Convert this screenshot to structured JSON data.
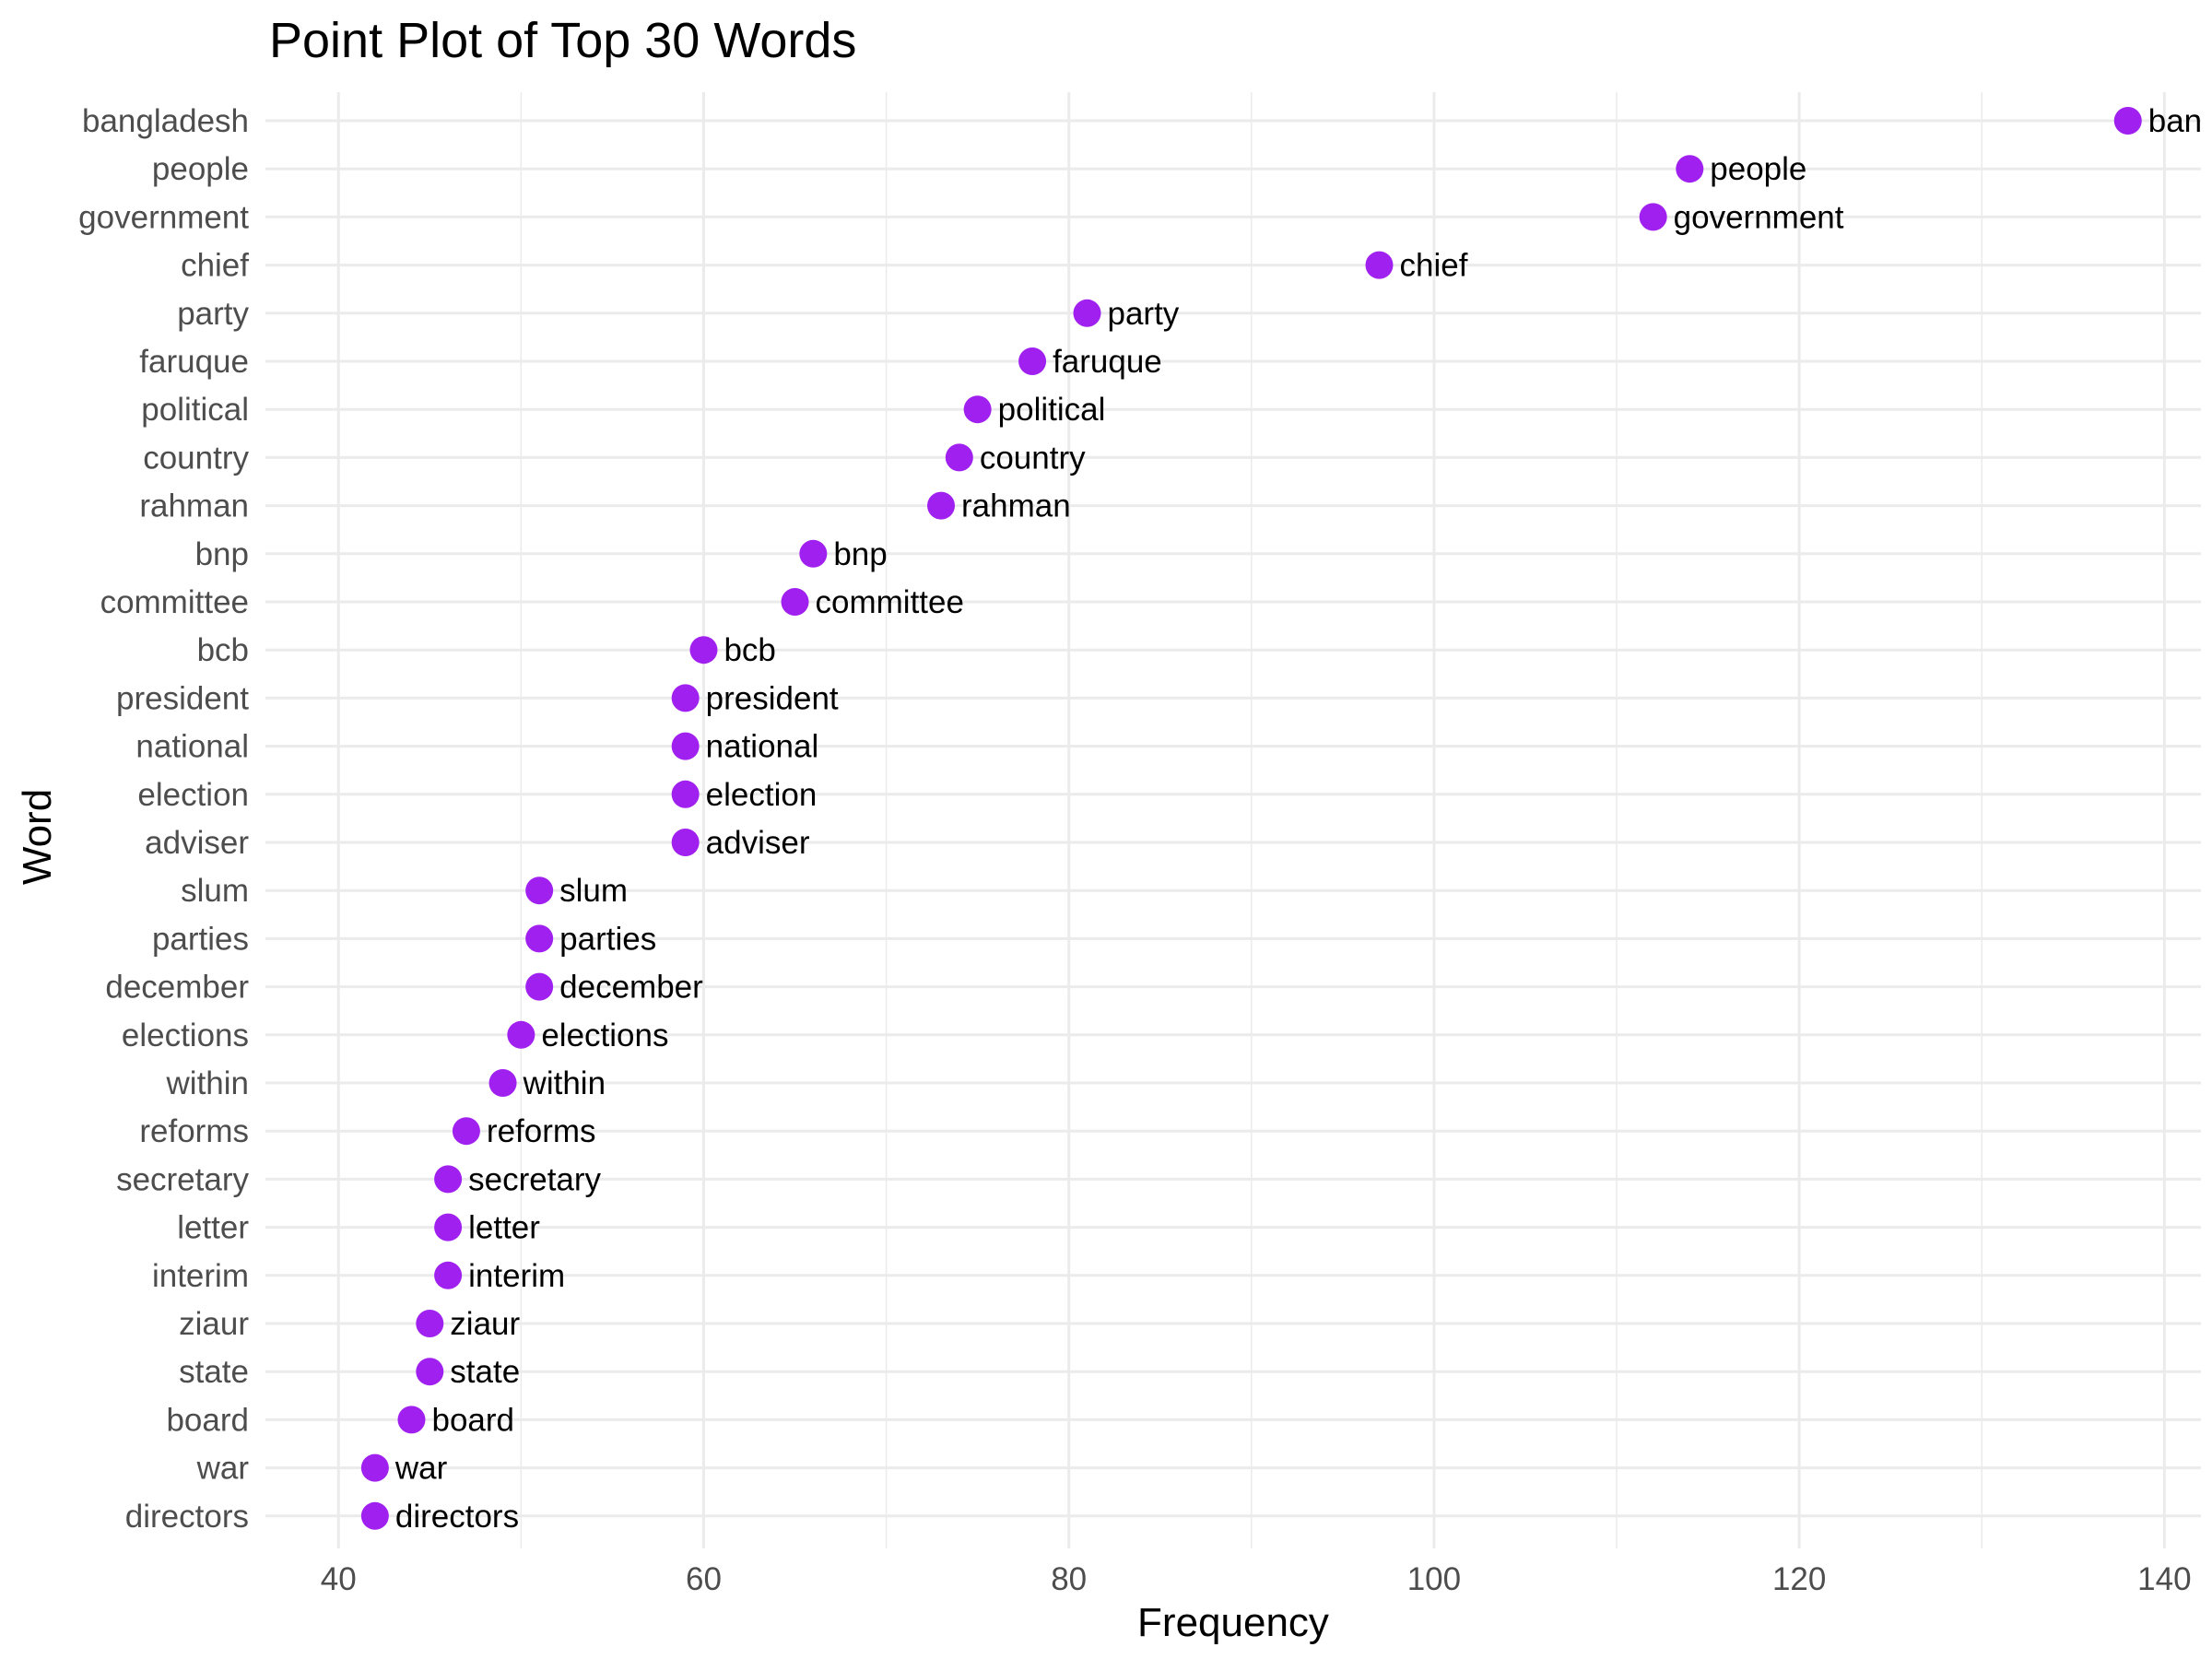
{
  "chart_data": {
    "type": "scatter",
    "title": "Point Plot of Top 30 Words",
    "xlabel": "Frequency",
    "ylabel": "Word",
    "xlim": [
      36,
      142
    ],
    "x_ticks": [
      40,
      60,
      80,
      100,
      120,
      140
    ],
    "grid": true,
    "point_color": "#A020F0",
    "points": [
      {
        "word": "bangladesh",
        "value": 138,
        "label": "ban"
      },
      {
        "word": "people",
        "value": 114,
        "label": "people"
      },
      {
        "word": "government",
        "value": 112,
        "label": "government"
      },
      {
        "word": "chief",
        "value": 97,
        "label": "chief"
      },
      {
        "word": "party",
        "value": 81,
        "label": "party"
      },
      {
        "word": "faruque",
        "value": 78,
        "label": "faruque"
      },
      {
        "word": "political",
        "value": 75,
        "label": "political"
      },
      {
        "word": "country",
        "value": 74,
        "label": "country"
      },
      {
        "word": "rahman",
        "value": 73,
        "label": "rahman"
      },
      {
        "word": "bnp",
        "value": 66,
        "label": "bnp"
      },
      {
        "word": "committee",
        "value": 65,
        "label": "committee"
      },
      {
        "word": "bcb",
        "value": 60,
        "label": "bcb"
      },
      {
        "word": "president",
        "value": 59,
        "label": "president"
      },
      {
        "word": "national",
        "value": 59,
        "label": "national"
      },
      {
        "word": "election",
        "value": 59,
        "label": "election"
      },
      {
        "word": "adviser",
        "value": 59,
        "label": "adviser"
      },
      {
        "word": "slum",
        "value": 51,
        "label": "slum"
      },
      {
        "word": "parties",
        "value": 51,
        "label": "parties"
      },
      {
        "word": "december",
        "value": 51,
        "label": "december"
      },
      {
        "word": "elections",
        "value": 50,
        "label": "elections"
      },
      {
        "word": "within",
        "value": 49,
        "label": "within"
      },
      {
        "word": "reforms",
        "value": 47,
        "label": "reforms"
      },
      {
        "word": "secretary",
        "value": 46,
        "label": "secretary"
      },
      {
        "word": "letter",
        "value": 46,
        "label": "letter"
      },
      {
        "word": "interim",
        "value": 46,
        "label": "interim"
      },
      {
        "word": "ziaur",
        "value": 45,
        "label": "ziaur"
      },
      {
        "word": "state",
        "value": 45,
        "label": "state"
      },
      {
        "word": "board",
        "value": 44,
        "label": "board"
      },
      {
        "word": "war",
        "value": 42,
        "label": "war"
      },
      {
        "word": "directors",
        "value": 42,
        "label": "directors"
      }
    ]
  }
}
